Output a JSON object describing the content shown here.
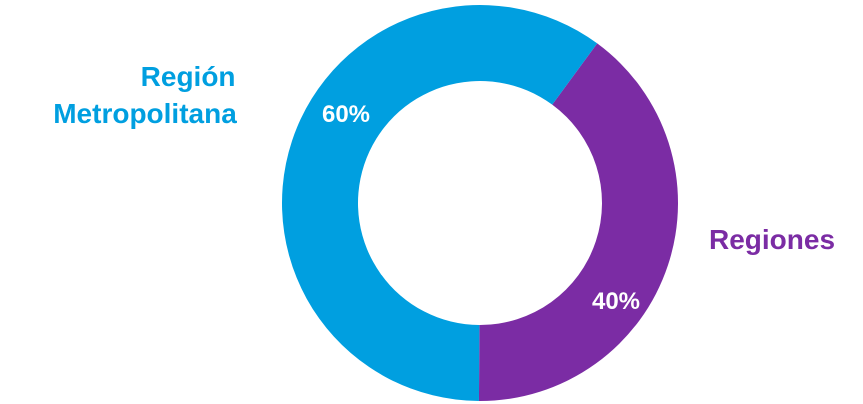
{
  "chart_data": {
    "type": "pie",
    "variant": "donut",
    "categories": [
      "Región Metropolitana",
      "Regiones"
    ],
    "values": [
      60,
      40
    ],
    "value_labels": [
      "60%",
      "40%"
    ],
    "category_label_lines": [
      [
        "Región",
        "Metropolitana"
      ],
      [
        "Regiones"
      ]
    ],
    "colors": [
      "#009FE0",
      "#7B2CA4"
    ],
    "legend": "none"
  }
}
